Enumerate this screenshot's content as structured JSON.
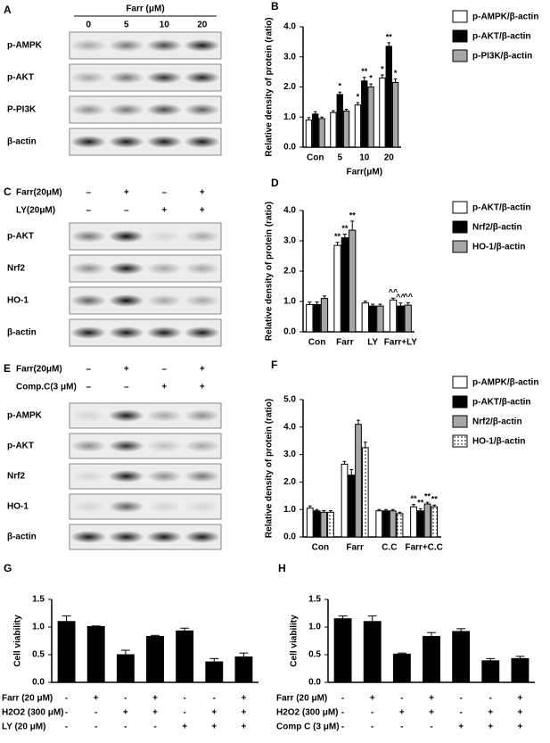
{
  "blots": [
    {
      "panel": "A",
      "header": "Farr (μM)",
      "lanes": [
        "0",
        "5",
        "10",
        "20"
      ],
      "rows": [
        "p-AMPK",
        "p-AKT",
        "P-PI3K",
        "β-actin"
      ]
    },
    {
      "panel": "C",
      "conditions": [
        {
          "label": "Farr(20μM)",
          "signs": [
            "–",
            "+",
            "–",
            "+"
          ]
        },
        {
          "label": "LY(20μM)",
          "signs": [
            "–",
            "–",
            "+",
            "+"
          ]
        }
      ],
      "rows": [
        "p-AKT",
        "Nrf2",
        "HO-1",
        "β-actin"
      ]
    },
    {
      "panel": "E",
      "conditions": [
        {
          "label": "Farr(20μM)",
          "signs": [
            "–",
            "+",
            "–",
            "+"
          ]
        },
        {
          "label": "Comp.C(3 μM)",
          "signs": [
            "–",
            "–",
            "+",
            "+"
          ]
        }
      ],
      "rows": [
        "p-AMPK",
        "p-AKT",
        "Nrf2",
        "HO-1",
        "β-actin"
      ]
    }
  ],
  "chart_data": [
    {
      "type": "bar",
      "panel": "B",
      "ylabel": "Relative density of protein (ratio)",
      "xlabel": "Farr(μM)",
      "legend": "right",
      "categories": [
        "Con",
        "5",
        "10",
        "20"
      ],
      "ylim": [
        0,
        4
      ],
      "yticks": [
        {
          "value": 0,
          "label": "0.0"
        },
        {
          "value": 1,
          "label": "1.0"
        },
        {
          "value": 2,
          "label": "2.0"
        },
        {
          "value": 3,
          "label": "3.0"
        },
        {
          "value": 4,
          "label": "4.0"
        }
      ],
      "series": [
        {
          "name": "p-AMPK/β-actin",
          "color": "#ffffff",
          "values": [
            0.9,
            1.15,
            1.4,
            2.3
          ],
          "errors": [
            0.08,
            0.06,
            0.08,
            0.1
          ],
          "markers": [
            null,
            null,
            "*",
            "*"
          ]
        },
        {
          "name": "p-AKT/β-actin",
          "color": "#000000",
          "values": [
            1.1,
            1.75,
            2.2,
            3.35
          ],
          "errors": [
            0.08,
            0.08,
            0.12,
            0.12
          ],
          "markers": [
            null,
            "*",
            "**",
            "**"
          ]
        },
        {
          "name": "p-PI3K/β-actin",
          "color": "#a6a6a6",
          "values": [
            0.95,
            1.2,
            2.0,
            2.15
          ],
          "errors": [
            0.05,
            0.06,
            0.1,
            0.12
          ],
          "markers": [
            null,
            null,
            "*",
            "*"
          ]
        }
      ]
    },
    {
      "type": "bar",
      "panel": "D",
      "ylabel": "Relative density of protein (ratio)",
      "legend": "right",
      "categories": [
        "Con",
        "Farr",
        "LY",
        "Farr+LY"
      ],
      "ylim": [
        0,
        4
      ],
      "yticks": [
        {
          "value": 0,
          "label": "0.0"
        },
        {
          "value": 1,
          "label": "1.0"
        },
        {
          "value": 2,
          "label": "2.0"
        },
        {
          "value": 3,
          "label": "3.0"
        },
        {
          "value": 4,
          "label": "4.0"
        }
      ],
      "series": [
        {
          "name": "p-AKT/β-actin",
          "color": "#ffffff",
          "values": [
            0.9,
            2.85,
            0.95,
            1.05
          ],
          "errors": [
            0.08,
            0.1,
            0.06,
            0.06
          ],
          "markers": [
            null,
            "**",
            null,
            "^^"
          ]
        },
        {
          "name": "Nrf2/β-actin",
          "color": "#000000",
          "values": [
            0.9,
            3.1,
            0.85,
            0.85
          ],
          "errors": [
            0.08,
            0.12,
            0.06,
            0.1
          ],
          "markers": [
            null,
            "**",
            null,
            "^^"
          ]
        },
        {
          "name": "HO-1/β-actin",
          "color": "#a6a6a6",
          "values": [
            1.1,
            3.35,
            0.85,
            0.88
          ],
          "errors": [
            0.08,
            0.3,
            0.06,
            0.08
          ],
          "markers": [
            null,
            "**",
            null,
            "^^"
          ]
        }
      ]
    },
    {
      "type": "bar",
      "panel": "F",
      "ylabel": "Relative density of protein (ratio)",
      "legend": "right",
      "categories": [
        "Con",
        "Farr",
        "C.C",
        "Farr+C.C"
      ],
      "ylim": [
        0,
        5
      ],
      "yticks": [
        {
          "value": 0,
          "label": "0.0"
        },
        {
          "value": 1,
          "label": "1.0"
        },
        {
          "value": 2,
          "label": "2.0"
        },
        {
          "value": 3,
          "label": "3.0"
        },
        {
          "value": 4,
          "label": "4.0"
        },
        {
          "value": 5,
          "label": "5.0"
        }
      ],
      "series": [
        {
          "name": "p-AMPK/β-actin",
          "color": "#ffffff",
          "values": [
            1.05,
            2.65,
            0.95,
            1.1
          ],
          "errors": [
            0.08,
            0.1,
            0.05,
            0.08
          ],
          "markers": [
            null,
            null,
            null,
            "**"
          ]
        },
        {
          "name": "p-AKT/β-actin",
          "color": "#000000",
          "values": [
            0.95,
            2.25,
            0.95,
            0.95
          ],
          "errors": [
            0.05,
            0.2,
            0.05,
            0.08
          ],
          "markers": [
            null,
            null,
            null,
            "**"
          ]
        },
        {
          "name": "Nrf2/β-actin",
          "color": "#a6a6a6",
          "values": [
            0.9,
            4.1,
            0.95,
            1.2
          ],
          "errors": [
            0.06,
            0.15,
            0.05,
            0.06
          ],
          "markers": [
            null,
            null,
            null,
            "**"
          ]
        },
        {
          "name": "HO-1/β-actin",
          "color": "#ffffff",
          "pattern": "dots",
          "values": [
            0.9,
            3.25,
            0.85,
            1.1
          ],
          "errors": [
            0.06,
            0.2,
            0.05,
            0.06
          ],
          "markers": [
            null,
            null,
            null,
            "**"
          ]
        }
      ]
    },
    {
      "type": "bar",
      "panel": "G",
      "ylabel": "Cell viability",
      "color": "#000000",
      "values": [
        1.1,
        1.01,
        0.5,
        0.83,
        0.93,
        0.37,
        0.46
      ],
      "errors": [
        0.1,
        0.01,
        0.08,
        0.02,
        0.05,
        0.06,
        0.07
      ],
      "ylim": [
        0,
        1.5
      ],
      "yticks": [
        {
          "value": 0,
          "label": "0.0"
        },
        0.5,
        {
          "value": 1,
          "label": "1.0"
        },
        1.5
      ],
      "conditions": [
        {
          "label": "Farr (20 μM)",
          "signs": [
            "-",
            "+",
            "-",
            "+",
            "-",
            "-",
            "+"
          ]
        },
        {
          "label": "H2O2 (300 μM)",
          "signs": [
            "-",
            "-",
            "+",
            "+",
            "-",
            "+",
            "+"
          ]
        },
        {
          "label": "LY (20 μM)",
          "signs": [
            "-",
            "-",
            "-",
            "-",
            "+",
            "+",
            "+"
          ]
        }
      ]
    },
    {
      "type": "bar",
      "panel": "H",
      "ylabel": "Cell viability",
      "color": "#000000",
      "values": [
        1.15,
        1.1,
        0.51,
        0.83,
        0.92,
        0.39,
        0.43
      ],
      "errors": [
        0.05,
        0.1,
        0.02,
        0.07,
        0.05,
        0.04,
        0.04
      ],
      "ylim": [
        0,
        1.5
      ],
      "yticks": [
        {
          "value": 0,
          "label": "0.0"
        },
        0.5,
        {
          "value": 1,
          "label": "1.0"
        },
        1.5
      ],
      "conditions": [
        {
          "label": "Farr (20 μM)",
          "signs": [
            "-",
            "+",
            "-",
            "+",
            "-",
            "-",
            "+"
          ]
        },
        {
          "label": "H2O2 (300 μM)",
          "signs": [
            "-",
            "-",
            "+",
            "+",
            "-",
            "+",
            "+"
          ]
        },
        {
          "label": "Comp C (3 μM)",
          "signs": [
            "-",
            "-",
            "-",
            "-",
            "+",
            "+",
            "+"
          ]
        }
      ]
    }
  ]
}
